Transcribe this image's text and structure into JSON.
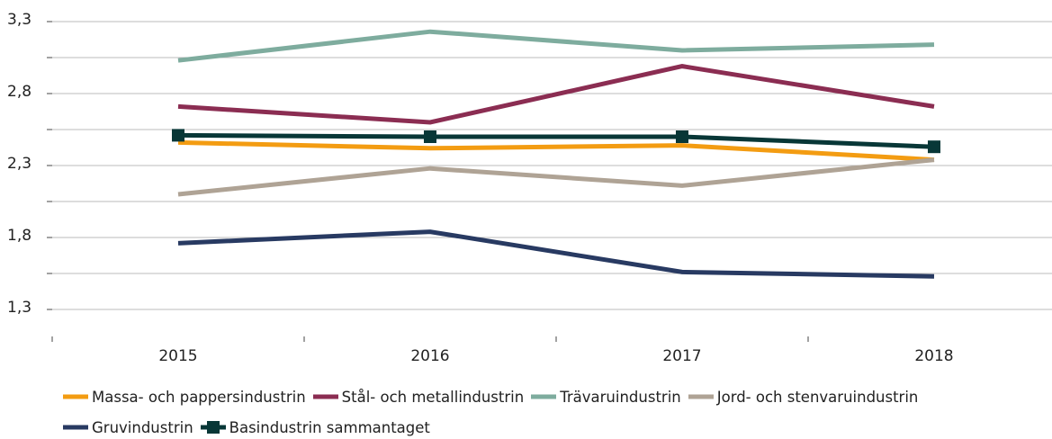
{
  "chart_data": {
    "type": "line",
    "categories": [
      "2015",
      "2016",
      "2017",
      "2018"
    ],
    "series": [
      {
        "name": "Massa- och pappersindustrin",
        "color": "#f39c12",
        "values": [
          2.46,
          2.42,
          2.44,
          2.34
        ]
      },
      {
        "name": "Stål- och metallindustrin",
        "color": "#8b2d52",
        "values": [
          2.71,
          2.6,
          2.99,
          2.71
        ]
      },
      {
        "name": "Trävaruindustrin",
        "color": "#7eac9e",
        "values": [
          3.03,
          3.23,
          3.1,
          3.14
        ]
      },
      {
        "name": "Jord- och stenvaruindustrin",
        "color": "#afa395",
        "values": [
          2.1,
          2.28,
          2.16,
          2.34
        ]
      },
      {
        "name": "Gruvindustrin",
        "color": "#283a62",
        "values": [
          1.76,
          1.84,
          1.56,
          1.53
        ]
      },
      {
        "name": "Basindustrin sammantaget",
        "color": "#083737",
        "marker": "square",
        "values": [
          2.51,
          2.5,
          2.5,
          2.43
        ]
      }
    ],
    "ylim": [
      1.3,
      3.3
    ],
    "yticks": [
      {
        "value": 1.3,
        "label": "1,3"
      },
      {
        "value": 1.8,
        "label": "1,8"
      },
      {
        "value": 2.3,
        "label": "2,3"
      },
      {
        "value": 2.8,
        "label": "2,8"
      },
      {
        "value": 3.3,
        "label": "3,3"
      }
    ],
    "minor_yticks": [
      1.55,
      2.05,
      2.55,
      3.05
    ],
    "grid": true,
    "legend": "bottom"
  }
}
